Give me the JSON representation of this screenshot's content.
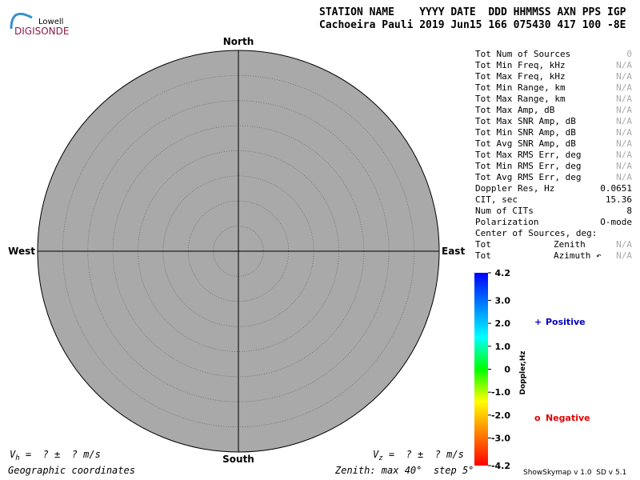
{
  "chart_data": {
    "type": "skymap",
    "logo": {
      "top": "Lowell",
      "bottom": "DIGISONDE"
    },
    "header": [
      "STATION NAME    YYYY DATE  DDD HHMMSS AXN PPS IGP",
      "Cachoeira Pauli 2019 Jun15 166 075430 417 100 -8E"
    ],
    "directions": {
      "north": "North",
      "south": "South",
      "east": "East",
      "west": "West"
    },
    "rlim": [
      0,
      40
    ],
    "rticks": [
      5,
      10,
      15,
      20,
      25,
      30,
      35,
      40
    ],
    "disk_color": "#a9a9a9",
    "stats": [
      [
        "Tot Num of Sources",
        "",
        "0"
      ],
      [
        "Tot Min Freq, kHz",
        "",
        "N/A"
      ],
      [
        "Tot Max Freq, kHz",
        "",
        "N/A"
      ],
      [
        "Tot Min Range, km",
        "",
        "N/A"
      ],
      [
        "Tot Max Range, km",
        "",
        "N/A"
      ],
      [
        "Tot Max Amp, dB",
        "",
        "N/A"
      ],
      [
        "Tot Max SNR Amp, dB",
        "",
        "N/A"
      ],
      [
        "Tot Min SNR Amp, dB",
        "",
        "N/A"
      ],
      [
        "Tot Avg SNR Amp, dB",
        "",
        "N/A"
      ],
      [
        "Tot Max RMS Err, deg",
        "",
        "N/A"
      ],
      [
        "Tot Min RMS Err, deg",
        "",
        "N/A"
      ],
      [
        "Tot Avg RMS Err, deg",
        "",
        "N/A"
      ],
      [
        "Doppler Res, Hz",
        "",
        "0.0651"
      ],
      [
        "CIT, sec",
        "",
        "15.36"
      ],
      [
        "Num of CITs",
        "",
        "8"
      ],
      [
        "Polarization",
        "",
        "O-mode"
      ],
      [
        "Center of Sources, deg:",
        "",
        ""
      ],
      [
        "Tot",
        "Zenith",
        "N/A"
      ],
      [
        "Tot",
        "Azimuth ↶",
        "N/A"
      ]
    ],
    "colorbar": {
      "label": "Doppler,Hz",
      "clim": [
        -4.2,
        4.2
      ],
      "colors": [
        "#ff0000",
        "#ff8000",
        "#ffff00",
        "#00ff00",
        "#00ffff",
        "#0080ff",
        "#0000ff"
      ],
      "cticks": [
        4.2,
        {
          "value": 3,
          "label": "3.0"
        },
        {
          "value": 2,
          "label": "2.0"
        },
        {
          "value": 1,
          "label": "1.0"
        },
        0,
        {
          "value": -1,
          "label": "-1.0"
        },
        {
          "value": -2,
          "label": "-2.0"
        },
        {
          "value": -3,
          "label": "-3.0"
        },
        -4.2
      ]
    },
    "legend": [
      {
        "symbol": "+",
        "name": "Positive",
        "color": "#0000c0"
      },
      {
        "symbol": "o",
        "name": "Negative",
        "color": "#e00000"
      }
    ],
    "vh": {
      "symbol": "V",
      "sub": "h",
      "text": " =  ? ±  ? m/s"
    },
    "vz": {
      "symbol": "V",
      "sub": "z",
      "text": " =  ? ±  ? m/s"
    },
    "coordinates": "Geographic coordinates",
    "zenith_note": "Zenith: max 40°  step 5°",
    "version": "ShowSkymap v 1.0  SD v 5.1"
  }
}
